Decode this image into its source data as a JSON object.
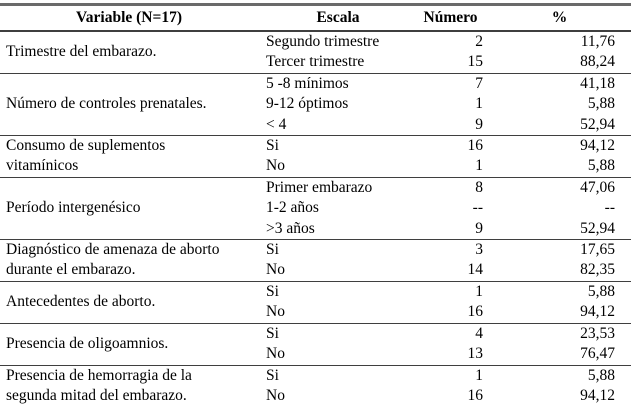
{
  "table": {
    "headers": {
      "variable": "Variable (N=17)",
      "escala": "Escala",
      "numero": "Número",
      "pct": "%"
    },
    "groups": [
      {
        "label": "Trimestre del embarazo.",
        "lines": [
          "Trimestre del embarazo."
        ],
        "rows": [
          {
            "escala": "Segundo trimestre",
            "numero": "2",
            "pct": "11,76"
          },
          {
            "escala": "Tercer trimestre",
            "numero": "15",
            "pct": "88,24"
          }
        ]
      },
      {
        "label": "Número de controles prenatales.",
        "lines": [
          "Número de controles prenatales."
        ],
        "rows": [
          {
            "escala": "5 -8 mínimos",
            "numero": "7",
            "pct": "41,18"
          },
          {
            "escala": "9-12 óptimos",
            "numero": "1",
            "pct": "5,88"
          },
          {
            "escala": "< 4",
            "numero": "9",
            "pct": "52,94"
          }
        ]
      },
      {
        "label": "Consumo de suplementos vitamínicos",
        "lines": [
          "Consumo de suplementos",
          "vitamínicos"
        ],
        "rows": [
          {
            "escala": "Si",
            "numero": "16",
            "pct": "94,12"
          },
          {
            "escala": "No",
            "numero": "1",
            "pct": "5,88"
          }
        ]
      },
      {
        "label": "Período intergenésico",
        "lines": [
          "Período intergenésico"
        ],
        "rows": [
          {
            "escala": "Primer embarazo",
            "numero": "8",
            "pct": "47,06"
          },
          {
            "escala": "1-2 años",
            "numero": "--",
            "pct": "--"
          },
          {
            "escala": ">3 años",
            "numero": "9",
            "pct": "52,94"
          }
        ]
      },
      {
        "label": "Diagnóstico de amenaza de aborto durante el embarazo.",
        "lines": [
          "Diagnóstico de amenaza de aborto",
          "durante el embarazo."
        ],
        "rows": [
          {
            "escala": "Si",
            "numero": "3",
            "pct": "17,65"
          },
          {
            "escala": "No",
            "numero": "14",
            "pct": "82,35"
          }
        ]
      },
      {
        "label": "Antecedentes de aborto.",
        "lines": [
          "Antecedentes de aborto."
        ],
        "rows": [
          {
            "escala": "Si",
            "numero": "1",
            "pct": "5,88"
          },
          {
            "escala": "No",
            "numero": "16",
            "pct": "94,12"
          }
        ]
      },
      {
        "label": "Presencia de oligoamnios.",
        "lines": [
          "Presencia de oligoamnios."
        ],
        "rows": [
          {
            "escala": "Si",
            "numero": "4",
            "pct": "23,53"
          },
          {
            "escala": "No",
            "numero": "13",
            "pct": "76,47"
          }
        ]
      },
      {
        "label": "Presencia de hemorragia de la segunda mitad del embarazo.",
        "lines": [
          "Presencia de hemorragia de la",
          "segunda mitad del embarazo."
        ],
        "rows": [
          {
            "escala": "Si",
            "numero": "1",
            "pct": "5,88"
          },
          {
            "escala": "No",
            "numero": "16",
            "pct": "94,12"
          }
        ]
      }
    ]
  }
}
